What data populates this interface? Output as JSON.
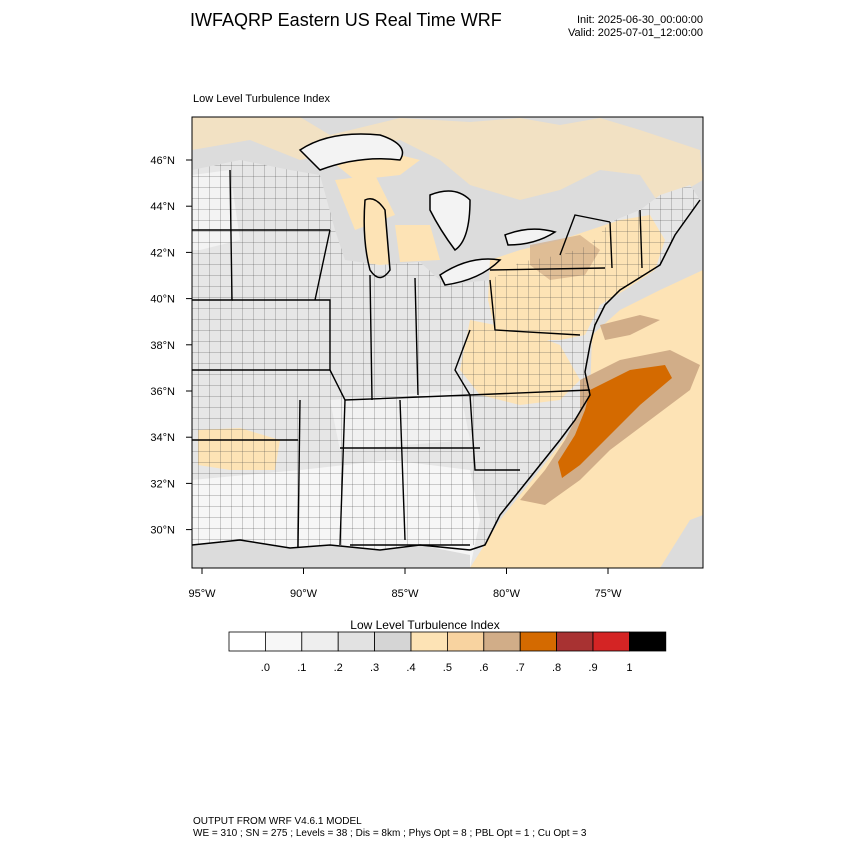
{
  "header": {
    "title": "IWFAQRP Eastern US Real Time WRF",
    "init": "Init: 2025-06-30_00:00:00",
    "valid": "Valid: 2025-07-01_12:00:00"
  },
  "map": {
    "panel_title": "Low Level Turbulence Index",
    "lat_labels": [
      "46°N",
      "44°N",
      "42°N",
      "40°N",
      "38°N",
      "36°N",
      "34°N",
      "32°N",
      "30°N"
    ],
    "lon_labels": [
      "95°W",
      "90°W",
      "85°W",
      "80°W",
      "75°W"
    ],
    "field_colors": {
      "ocean_grey": "#dcdcdc",
      "land_light": "#f3f3f3",
      "tan_light": "#fde3b5",
      "tan_mid": "#f8d3a0",
      "tan_dark": "#d1ad88",
      "orange": "#d46a00",
      "boundary": "#000000"
    }
  },
  "legend": {
    "title": "Low Level Turbulence Index",
    "labels": [
      ".0",
      ".1",
      ".2",
      ".3",
      ".4",
      ".5",
      ".6",
      ".7",
      ".8",
      ".9",
      "1"
    ],
    "colors": [
      "#ffffff",
      "#f7f7f7",
      "#eeeeee",
      "#e2e2e2",
      "#d5d5d5",
      "#fde3b5",
      "#f8d3a0",
      "#d1ad88",
      "#d46a00",
      "#a83232",
      "#d42424",
      "#000000"
    ]
  },
  "footer": {
    "line1": "OUTPUT FROM WRF V4.6.1 MODEL",
    "line2": "WE = 310 ; SN = 275 ; Levels = 38 ; Dis = 8km ; Phys Opt = 8 ; PBL Opt = 1 ; Cu Opt = 3"
  }
}
